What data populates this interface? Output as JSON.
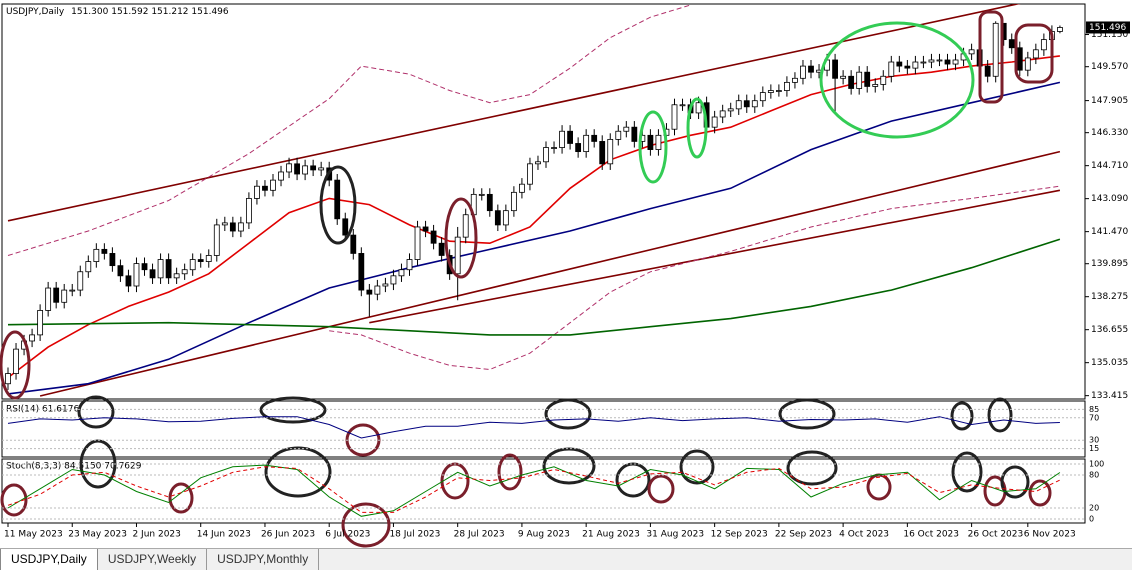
{
  "chart_data": {
    "type": "candlestick",
    "symbol": "USDJPY,Daily",
    "ohlc_labels": [
      "151.300",
      "151.592",
      "151.212",
      "151.496"
    ],
    "categories": [
      "11 May 2023",
      null,
      null,
      null,
      null,
      null,
      null,
      null,
      "23 May 2023",
      null,
      null,
      null,
      null,
      null,
      null,
      null,
      "2 Jun 2023",
      null,
      null,
      null,
      null,
      null,
      null,
      null,
      "14 Jun 2023",
      null,
      null,
      null,
      null,
      null,
      null,
      null,
      "26 Jun 2023",
      null,
      null,
      null,
      null,
      null,
      null,
      null,
      "6 Jul 2023",
      null,
      null,
      null,
      null,
      null,
      null,
      null,
      "18 Jul 2023",
      null,
      null,
      null,
      null,
      null,
      null,
      null,
      "28 Jul 2023",
      null,
      null,
      null,
      null,
      null,
      null,
      null,
      "9 Aug 2023",
      null,
      null,
      null,
      null,
      null,
      null,
      null,
      "21 Aug 2023",
      null,
      null,
      null,
      null,
      null,
      null,
      null,
      "31 Aug 2023",
      null,
      null,
      null,
      null,
      null,
      null,
      null,
      "12 Sep 2023",
      null,
      null,
      null,
      null,
      null,
      null,
      null,
      "22 Sep 2023",
      null,
      null,
      null,
      null,
      null,
      null,
      null,
      "4 Oct 2023",
      null,
      null,
      null,
      null,
      null,
      null,
      null,
      "16 Oct 2023",
      null,
      null,
      null,
      null,
      null,
      null,
      null,
      "26 Oct 2023",
      null,
      null,
      null,
      null,
      null,
      null,
      "6 Nov 2023",
      null,
      null,
      null,
      null
    ],
    "open": [
      134.0,
      134.5,
      135.7,
      136.1,
      136.4,
      137.6,
      138.7,
      138.0,
      138.6,
      138.6,
      139.5,
      140.0,
      140.6,
      140.4,
      139.8,
      139.3,
      138.8,
      139.9,
      139.6,
      139.2,
      140.1,
      139.2,
      139.4,
      139.6,
      140.1,
      140.0,
      140.3,
      141.8,
      141.9,
      141.5,
      141.9,
      143.1,
      143.7,
      143.5,
      144.0,
      144.4,
      144.8,
      144.3,
      144.7,
      144.5,
      144.6,
      144.0,
      142.1,
      141.3,
      140.4,
      138.6,
      138.4,
      138.8,
      138.9,
      139.3,
      139.6,
      140.1,
      141.7,
      141.5,
      140.9,
      140.3,
      139.4,
      141.2,
      142.3,
      143.3,
      143.3,
      142.5,
      141.8,
      142.5,
      143.4,
      143.8,
      144.8,
      144.9,
      145.6,
      145.6,
      146.4,
      145.8,
      145.4,
      146.2,
      145.9,
      144.8,
      146.0,
      146.4,
      146.6,
      145.9,
      146.2,
      145.5,
      146.2,
      146.5,
      147.7,
      147.7,
      147.3,
      147.8,
      146.6,
      147.1,
      147.4,
      147.5,
      147.9,
      147.6,
      147.9,
      148.3,
      148.4,
      148.4,
      148.8,
      149.0,
      149.6,
      149.3,
      149.4,
      149.9,
      149.0,
      149.1,
      148.5,
      149.3,
      148.6,
      148.7,
      149.1,
      149.8,
      149.6,
      149.5,
      149.8,
      149.8,
      149.9,
      149.9,
      149.7,
      149.9,
      150.2,
      150.4,
      149.6,
      149.1,
      151.7,
      150.9,
      150.5,
      149.4,
      150.0,
      150.4,
      150.9,
      151.3
    ],
    "high": [
      134.8,
      136.0,
      136.4,
      136.7,
      137.9,
      139.0,
      139.0,
      138.9,
      138.9,
      139.8,
      140.3,
      140.9,
      140.9,
      140.7,
      140.1,
      139.6,
      140.2,
      140.2,
      139.9,
      140.4,
      140.4,
      139.7,
      139.9,
      140.4,
      140.4,
      140.6,
      142.1,
      142.2,
      142.2,
      142.2,
      143.4,
      144.0,
      144.0,
      144.3,
      144.7,
      145.1,
      145.1,
      145.0,
      145.0,
      144.9,
      144.9,
      144.3,
      142.4,
      141.6,
      140.7,
      138.9,
      139.1,
      139.2,
      139.6,
      139.9,
      140.4,
      142.0,
      142.0,
      141.8,
      141.2,
      140.6,
      141.7,
      142.6,
      143.6,
      143.6,
      143.6,
      142.8,
      142.8,
      143.7,
      144.1,
      145.1,
      145.2,
      145.9,
      145.9,
      146.7,
      146.7,
      146.1,
      146.5,
      146.5,
      146.2,
      146.3,
      146.7,
      146.9,
      146.9,
      146.5,
      146.5,
      146.5,
      146.8,
      148.0,
      148.0,
      148.0,
      148.1,
      148.1,
      147.4,
      147.7,
      147.8,
      148.2,
      148.2,
      148.2,
      148.6,
      148.7,
      148.7,
      149.1,
      149.3,
      149.9,
      149.9,
      149.7,
      150.2,
      150.2,
      149.4,
      149.4,
      149.6,
      149.6,
      149.0,
      149.4,
      150.1,
      150.1,
      149.9,
      150.1,
      150.1,
      150.2,
      150.2,
      150.2,
      150.2,
      150.5,
      150.7,
      150.7,
      149.9,
      151.8,
      151.7,
      151.2,
      150.8,
      150.3,
      150.7,
      151.2,
      151.6,
      151.592
    ],
    "low": [
      133.7,
      134.2,
      135.4,
      135.8,
      136.1,
      137.3,
      137.7,
      137.7,
      138.3,
      138.3,
      139.2,
      139.7,
      140.1,
      139.5,
      139.0,
      138.5,
      138.5,
      139.3,
      138.9,
      138.9,
      138.9,
      138.9,
      139.1,
      139.3,
      139.7,
      139.7,
      140.0,
      141.5,
      141.2,
      141.2,
      141.6,
      142.8,
      143.2,
      143.2,
      143.7,
      144.1,
      144.0,
      144.0,
      144.2,
      144.2,
      143.7,
      141.8,
      141.0,
      140.1,
      138.3,
      137.3,
      138.1,
      138.5,
      138.6,
      139.0,
      139.3,
      139.8,
      141.2,
      140.6,
      140.0,
      139.1,
      138.1,
      140.9,
      142.0,
      143.0,
      142.2,
      141.5,
      141.5,
      142.2,
      143.1,
      143.5,
      144.5,
      144.6,
      145.3,
      145.3,
      145.5,
      145.1,
      145.1,
      145.6,
      144.5,
      144.5,
      145.7,
      146.1,
      145.6,
      145.6,
      145.2,
      145.2,
      145.9,
      146.2,
      147.4,
      147.0,
      147.0,
      146.3,
      146.3,
      146.8,
      147.1,
      147.2,
      147.3,
      147.3,
      147.6,
      148.0,
      148.1,
      148.1,
      148.5,
      148.7,
      149.0,
      149.0,
      149.1,
      147.3,
      148.7,
      148.2,
      148.2,
      148.3,
      148.3,
      148.4,
      148.8,
      149.3,
      149.2,
      149.2,
      149.5,
      149.5,
      149.6,
      149.4,
      149.4,
      149.6,
      149.9,
      149.3,
      148.8,
      148.8,
      150.6,
      150.2,
      149.1,
      149.1,
      149.7,
      150.1,
      150.6,
      151.212
    ],
    "close": [
      134.5,
      135.7,
      136.1,
      136.4,
      137.6,
      138.7,
      138.0,
      138.6,
      138.6,
      139.5,
      140.0,
      140.6,
      140.4,
      139.8,
      139.3,
      138.8,
      139.9,
      139.6,
      139.2,
      140.1,
      139.2,
      139.4,
      139.6,
      140.1,
      140.0,
      140.3,
      141.8,
      141.9,
      141.5,
      141.9,
      143.1,
      143.7,
      143.5,
      144.0,
      144.4,
      144.8,
      144.3,
      144.7,
      144.5,
      144.6,
      144.0,
      142.1,
      141.3,
      140.4,
      138.6,
      138.4,
      138.8,
      138.9,
      139.3,
      139.6,
      140.1,
      141.7,
      141.5,
      140.9,
      140.3,
      139.4,
      141.2,
      142.3,
      143.3,
      143.3,
      142.5,
      141.8,
      142.5,
      143.4,
      143.8,
      144.8,
      144.9,
      145.6,
      145.6,
      146.4,
      145.8,
      145.4,
      146.2,
      145.9,
      144.8,
      146.0,
      146.4,
      146.6,
      145.9,
      146.2,
      145.5,
      146.2,
      146.5,
      147.7,
      147.7,
      147.3,
      147.8,
      146.6,
      147.1,
      147.4,
      147.5,
      147.9,
      147.6,
      147.9,
      148.3,
      148.4,
      148.4,
      148.8,
      149.0,
      149.6,
      149.3,
      149.4,
      149.9,
      149.0,
      149.1,
      148.5,
      149.3,
      148.6,
      148.7,
      149.1,
      149.8,
      149.6,
      149.5,
      149.8,
      149.8,
      149.9,
      149.9,
      149.7,
      149.9,
      150.2,
      150.4,
      149.6,
      149.1,
      151.7,
      150.9,
      150.5,
      149.4,
      150.0,
      150.4,
      150.9,
      151.3,
      151.496
    ],
    "ylim": [
      133.3,
      152.6
    ],
    "yticks": [
      {
        "value": 133.415,
        "label": "133.415"
      },
      {
        "value": 135.035,
        "label": "135.035"
      },
      {
        "value": 136.655,
        "label": "136.655"
      },
      {
        "value": 138.275,
        "label": "138.275"
      },
      {
        "value": 139.895,
        "label": "139.895"
      },
      {
        "value": 141.47,
        "label": "141.470"
      },
      {
        "value": 143.09,
        "label": "143.090"
      },
      {
        "value": 144.71,
        "label": "144.710"
      },
      {
        "value": 146.33,
        "label": "146.330"
      },
      {
        "value": 147.905,
        "label": "147.905"
      },
      {
        "value": 149.57,
        "label": "149.570"
      },
      {
        "value": 151.15,
        "label": "151.150"
      }
    ],
    "price_tag": {
      "value": 151.496,
      "label": "151.496"
    },
    "overlays": [
      {
        "color": "#800000",
        "dash": false,
        "x": [
          0,
          131
        ],
        "values": [
          142.0,
          153.1
        ]
      },
      {
        "color": "#800000",
        "dash": false,
        "x": [
          4,
          131
        ],
        "values": [
          133.4,
          145.4
        ]
      },
      {
        "color": "#800000",
        "dash": false,
        "x": [
          45,
          131
        ],
        "values": [
          137.0,
          143.5
        ]
      },
      {
        "color": "#b0306a",
        "dash": true,
        "x": [
          0,
          10,
          20,
          30,
          40,
          44,
          50,
          55,
          60,
          65,
          70,
          75,
          80,
          85
        ],
        "values": [
          140.3,
          141.5,
          143.0,
          145.3,
          148.0,
          149.6,
          149.2,
          148.4,
          147.8,
          148.2,
          149.5,
          151.0,
          152.0,
          152.6
        ]
      },
      {
        "color": "#b0306a",
        "dash": true,
        "x": [
          40,
          44,
          50,
          55,
          60,
          65,
          70,
          75,
          80,
          90,
          100,
          110,
          120,
          131
        ],
        "values": [
          136.6,
          136.4,
          135.5,
          134.9,
          134.7,
          135.5,
          137.0,
          138.5,
          139.5,
          140.5,
          141.7,
          142.6,
          143.1,
          143.7
        ]
      },
      {
        "color": "#e00000",
        "dash": false,
        "x": [
          0,
          5,
          10,
          15,
          20,
          25,
          30,
          35,
          40,
          45,
          50,
          55,
          60,
          65,
          70,
          75,
          80,
          85,
          90,
          95,
          100,
          105,
          110,
          115,
          120,
          125,
          131
        ],
        "values": [
          134.3,
          135.8,
          136.9,
          137.8,
          138.5,
          139.4,
          140.9,
          142.4,
          143.1,
          142.8,
          141.8,
          141.0,
          140.9,
          141.7,
          143.6,
          145.0,
          145.7,
          146.2,
          146.6,
          147.4,
          148.2,
          148.7,
          149.1,
          149.3,
          149.6,
          149.8,
          150.1
        ]
      },
      {
        "color": "#000080",
        "dash": false,
        "x": [
          0,
          10,
          20,
          30,
          40,
          50,
          60,
          70,
          80,
          90,
          100,
          110,
          120,
          131
        ],
        "values": [
          133.5,
          134.0,
          135.2,
          137.0,
          138.7,
          139.7,
          140.6,
          141.5,
          142.6,
          143.6,
          145.5,
          146.9,
          147.8,
          148.8
        ]
      },
      {
        "color": "#006400",
        "dash": false,
        "x": [
          0,
          20,
          40,
          60,
          70,
          80,
          90,
          100,
          110,
          120,
          131
        ],
        "values": [
          136.9,
          137.0,
          136.8,
          136.4,
          136.4,
          136.8,
          137.2,
          137.8,
          138.6,
          139.7,
          141.1
        ]
      }
    ],
    "rsi": {
      "label": "RSI(14) 61.6176",
      "color": "#000080",
      "ylim": [
        0,
        100
      ],
      "yticks": [
        85,
        70,
        30,
        15
      ],
      "x": [
        0,
        4,
        8,
        12,
        16,
        20,
        24,
        28,
        32,
        36,
        40,
        44,
        48,
        52,
        56,
        60,
        64,
        68,
        72,
        76,
        80,
        84,
        88,
        92,
        96,
        100,
        104,
        108,
        112,
        116,
        120,
        124,
        128,
        131
      ],
      "values": [
        60,
        68,
        66,
        70,
        68,
        63,
        64,
        69,
        72,
        72,
        58,
        34,
        45,
        55,
        55,
        62,
        60,
        66,
        68,
        64,
        70,
        65,
        68,
        70,
        64,
        67,
        66,
        68,
        62,
        72,
        58,
        66,
        60,
        61.6176
      ]
    },
    "stoch": {
      "label": "Stoch(8,3,3) 84.5150 70.7629",
      "ylim": [
        0,
        100
      ],
      "yticks": [
        100,
        80,
        20,
        0
      ],
      "x": [
        0,
        4,
        8,
        12,
        16,
        20,
        24,
        28,
        32,
        36,
        40,
        44,
        48,
        52,
        56,
        60,
        64,
        68,
        72,
        76,
        80,
        84,
        88,
        92,
        96,
        100,
        104,
        108,
        112,
        116,
        120,
        124,
        128,
        131
      ],
      "series": [
        {
          "color": "#008000",
          "dash": false,
          "values": [
            20,
            55,
            90,
            80,
            50,
            30,
            75,
            95,
            98,
            90,
            40,
            5,
            15,
            50,
            85,
            60,
            80,
            95,
            70,
            60,
            90,
            80,
            55,
            92,
            90,
            40,
            65,
            80,
            85,
            35,
            70,
            50,
            55,
            84.515
          ]
        },
        {
          "color": "#e00000",
          "dash": true,
          "values": [
            25,
            45,
            80,
            85,
            60,
            40,
            60,
            85,
            95,
            92,
            55,
            12,
            12,
            40,
            75,
            70,
            75,
            90,
            78,
            65,
            82,
            85,
            62,
            85,
            92,
            55,
            58,
            75,
            83,
            48,
            62,
            55,
            50,
            70.7629
          ]
        }
      ]
    }
  },
  "tabs": [
    "USDJPY,Daily",
    "USDJPY,Weekly",
    "USDJPY,Monthly"
  ]
}
